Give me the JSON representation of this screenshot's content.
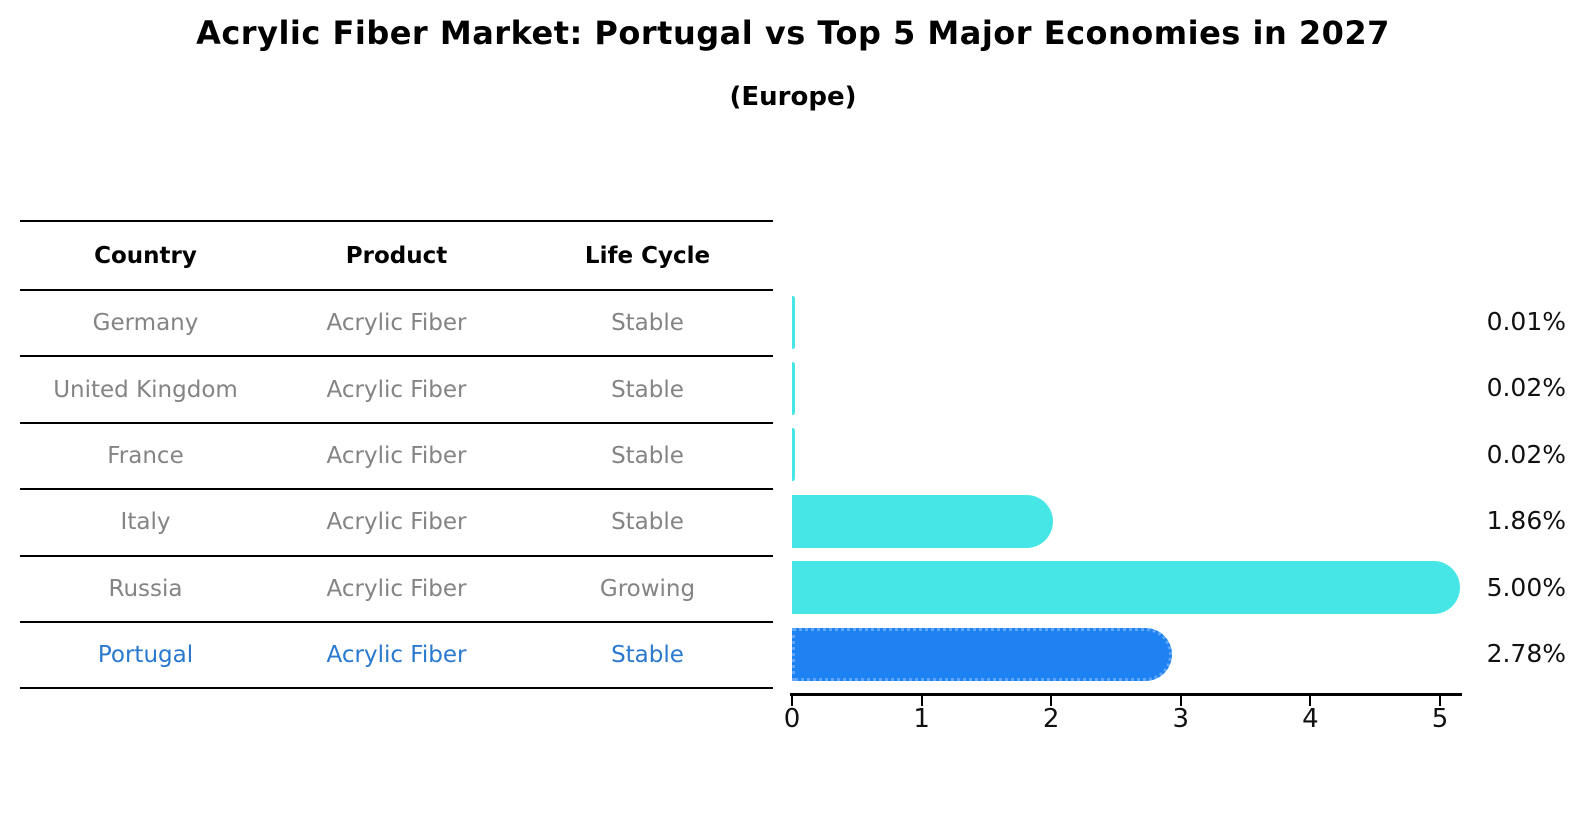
{
  "header": {
    "title": "Acrylic Fiber Market: Portugal vs Top 5 Major Economies in 2027",
    "subtitle": "(Europe)"
  },
  "table": {
    "headers": [
      "Country",
      "Product",
      "Life Cycle"
    ],
    "rows": [
      {
        "country": "Germany",
        "product": "Acrylic Fiber",
        "life_cycle": "Stable",
        "highlight": false
      },
      {
        "country": "United Kingdom",
        "product": "Acrylic Fiber",
        "life_cycle": "Stable",
        "highlight": false
      },
      {
        "country": "France",
        "product": "Acrylic Fiber",
        "life_cycle": "Stable",
        "highlight": false
      },
      {
        "country": "Italy",
        "product": "Acrylic Fiber",
        "life_cycle": "Stable",
        "highlight": false
      },
      {
        "country": "Russia",
        "product": "Acrylic Fiber",
        "life_cycle": "Growing",
        "highlight": false
      },
      {
        "country": "Portugal",
        "product": "Acrylic Fiber",
        "life_cycle": "Stable",
        "highlight": true
      }
    ]
  },
  "chart_data": {
    "type": "bar",
    "orientation": "horizontal",
    "title": "Acrylic Fiber Market: Portugal vs Top 5 Major Economies in 2027",
    "subtitle": "(Europe)",
    "categories": [
      "Germany",
      "United Kingdom",
      "France",
      "Italy",
      "Russia",
      "Portugal"
    ],
    "values": [
      0.01,
      0.02,
      0.02,
      1.86,
      5.0,
      2.78
    ],
    "value_labels": [
      "0.01%",
      "0.02%",
      "0.02%",
      "1.86%",
      "5.00%",
      "2.78%"
    ],
    "xlabel": "",
    "ylabel": "",
    "xlim": [
      0,
      5.25
    ],
    "xticks": [
      "0",
      "1",
      "2",
      "3",
      "4",
      "5"
    ],
    "grid": false,
    "legend": false,
    "bar_color": "#47e6e6",
    "highlight_color": "#1e82f2",
    "highlight_index": 5,
    "highlight_edge_style": "dotted"
  },
  "colors": {
    "background": "#ffffff",
    "text": "#000000",
    "muted_text": "#848484",
    "highlight_text": "#2979cf",
    "bar": "#47e6e6",
    "highlight_bar": "#1e82f2"
  }
}
